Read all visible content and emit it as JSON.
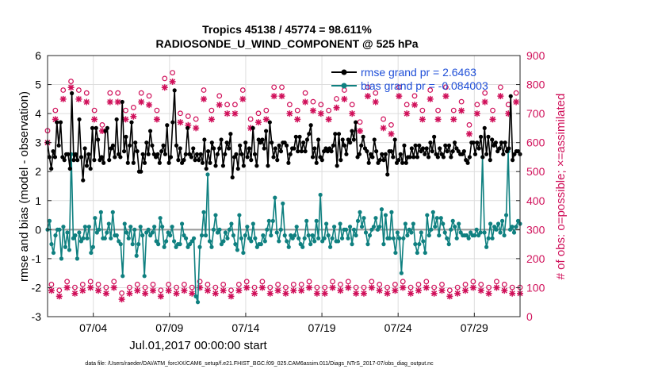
{
  "chart_data": {
    "type": "line",
    "title_line1": "Tropics 45138 / 45774 = 98.611%",
    "title_line2": "RADIOSONDE_U_WIND_COMPONENT @ 525 hPa",
    "xlabel": "Jul.01,2017 00:00:00 start",
    "ylabel_left": "rmse and bias (model - observation)",
    "ylabel_right": "# of obs: o=possible; ×=assimilated",
    "footer": "data file: /Users/raeder/DAI/ATM_forcXX/CAM6_setup/f.e21.FHIST_BGC.f09_025.CAM6assim.011/Diags_NTrS_2017-07/obs_diag_output.nc",
    "x_ticks": [
      "07/04",
      "07/09",
      "07/14",
      "07/19",
      "07/24",
      "07/29"
    ],
    "x_tick_days": [
      4,
      9,
      14,
      19,
      24,
      29
    ],
    "x_range": [
      1.0,
      32.0
    ],
    "ylim_left": [
      -3,
      6
    ],
    "y_ticks_left": [
      "6",
      "5",
      "4",
      "3",
      "2",
      "1",
      "0",
      "-1",
      "-2",
      "-3"
    ],
    "ylim_right": [
      0,
      900
    ],
    "y_ticks_right": [
      "900",
      "800",
      "700",
      "600",
      "500",
      "400",
      "300",
      "200",
      "100",
      "0"
    ],
    "grid": true,
    "legend_position": "top-right",
    "colors": {
      "rmse": "#000000",
      "bias": "#0f8080",
      "obs": "#d0105a",
      "zero_line": "#999999",
      "grid": "#dddddd"
    },
    "series": [
      {
        "name": "rmse grand pr = 2.6463",
        "axis": "left",
        "values": [
          3.0,
          2.5,
          2.1,
          2.7,
          2.5,
          3.7,
          2.9,
          3.7,
          2.5,
          2.4,
          2.6,
          2.6,
          2.1,
          4.7,
          2.4,
          2.6,
          2.4,
          3.8,
          2.5,
          1.7,
          2.8,
          2.2,
          2.6,
          2.1,
          3.5,
          2.4,
          3.5,
          3.1,
          2.4,
          2.5,
          2.3,
          3.4,
          3.5,
          2.4,
          2.8,
          2.9,
          2.5,
          3.8,
          2.6,
          2.5,
          4.4,
          2.7,
          3.2,
          2.3,
          2.9,
          3.7,
          2.3,
          3.0,
          2.7,
          2.0,
          2.0,
          2.6,
          2.3,
          3.0,
          2.6,
          3.4,
          2.9,
          2.6,
          2.5,
          2.6,
          2.3,
          2.7,
          2.9,
          2.6,
          3.6,
          2.3,
          2.5,
          3.7,
          4.8,
          2.9,
          2.4,
          2.8,
          2.3,
          2.4,
          2.6,
          3.5,
          2.6,
          2.5,
          2.8,
          2.4,
          2.6,
          2.4,
          2.6,
          2.3,
          3.1,
          2.1,
          2.7,
          2.3,
          3.0,
          2.8,
          2.2,
          2.6,
          2.8,
          3.1,
          2.2,
          2.6,
          3.0,
          2.8,
          3.3,
          1.8,
          2.5,
          2.6,
          2.1,
          2.9,
          2.6,
          2.2,
          3.0,
          2.5,
          2.8,
          2.4,
          3.5,
          2.6,
          2.2,
          3.1,
          3.0,
          3.1,
          2.8,
          3.4,
          2.2,
          3.7,
          3.0,
          2.5,
          2.8,
          2.4,
          2.9,
          2.7,
          3.0,
          3.0,
          2.9,
          2.3,
          2.6,
          2.8,
          2.8,
          3.2,
          2.7,
          3.2,
          2.7,
          3.0,
          2.7,
          3.1,
          3.3,
          3.6,
          2.5,
          2.8,
          2.3,
          3.1,
          2.5,
          2.4,
          2.7,
          2.8,
          2.7,
          2.8,
          2.7,
          2.9,
          3.3,
          2.2,
          3.3,
          2.4,
          3.1,
          2.9,
          2.6,
          3.1,
          3.0,
          3.4,
          3.1,
          3.7,
          2.5,
          2.6,
          2.9,
          3.2,
          2.8,
          2.7,
          2.3,
          2.6,
          2.5,
          3.1,
          2.7,
          2.3,
          2.4,
          2.6,
          2.4,
          2.6,
          1.9,
          2.7,
          2.7,
          2.5,
          3.1,
          2.3,
          2.4,
          2.6,
          2.3,
          2.9,
          2.3,
          2.5,
          2.5,
          2.8,
          2.5,
          2.9,
          2.5,
          2.9,
          2.7,
          2.8,
          2.6,
          2.8,
          2.5,
          3.0,
          2.7,
          3.2,
          2.6,
          2.5,
          2.8,
          2.6,
          2.5,
          2.9,
          2.7,
          2.9,
          2.5,
          2.7,
          3.0,
          2.8,
          2.7,
          2.6,
          2.6,
          2.7,
          2.4,
          2.3,
          2.5,
          3.0,
          3.0,
          2.6,
          3.0,
          2.8,
          3.2,
          2.5,
          3.5,
          2.6,
          3.2,
          2.4,
          3.1,
          2.9,
          3.0,
          2.7,
          2.8,
          3.0,
          2.6,
          3.0,
          2.7,
          2.8,
          4.6,
          2.4,
          2.6,
          2.7,
          2.7,
          2.6
        ],
        "note": "approximate, 4 values per day (6-hourly)"
      },
      {
        "name": "bias grand pr = -0.084003",
        "axis": "left",
        "values": [
          0.0,
          0.3,
          -0.5,
          -0.8,
          -0.2,
          0.0,
          0.0,
          -1.0,
          0.1,
          -0.6,
          -0.1,
          -0.7,
          2.6,
          -0.3,
          -0.2,
          -1.0,
          -0.1,
          -0.4,
          -0.3,
          0.1,
          -0.3,
          0.1,
          -0.8,
          -0.6,
          0.4,
          -0.1,
          0.0,
          0.6,
          -0.3,
          -0.3,
          -0.1,
          0.2,
          -0.3,
          0.6,
          -0.2,
          -0.2,
          -0.4,
          -0.5,
          -1.6,
          0.2,
          -0.1,
          -0.3,
          0.1,
          -0.5,
          0.0,
          -0.9,
          -0.5,
          0.1,
          -0.2,
          -1.6,
          -0.1,
          0.0,
          -0.2,
          -0.1,
          0.1,
          -0.4,
          -0.5,
          0.4,
          0.1,
          -0.6,
          -0.4,
          -0.1,
          -0.2,
          0.1,
          -0.4,
          -0.6,
          -0.5,
          -0.5,
          0.2,
          -0.2,
          -0.3,
          -0.6,
          -0.5,
          -0.4,
          -0.3,
          -2.3,
          -2.5,
          -0.6,
          -0.2,
          0.6,
          -0.2,
          1.9,
          -0.4,
          -0.6,
          0.0,
          0.5,
          -0.1,
          0.0,
          -0.5,
          -0.4,
          -0.1,
          -0.3,
          0.0,
          0.2,
          -0.2,
          -0.5,
          -0.7,
          0.5,
          -0.3,
          -0.8,
          -0.2,
          0.1,
          -0.3,
          -0.4,
          0.2,
          -0.3,
          -0.6,
          -0.5,
          -0.5,
          -0.2,
          -0.4,
          0.0,
          0.3,
          -0.2,
          0.3,
          1.1,
          -0.1,
          -0.4,
          0.0,
          0.9,
          -0.2,
          -0.4,
          -0.6,
          -0.2,
          -0.3,
          -0.2,
          0.1,
          -0.3,
          -0.5,
          -0.6,
          -0.3,
          0.3,
          -0.2,
          -0.5,
          -0.2,
          -0.4,
          0.3,
          -0.3,
          1.2,
          -0.4,
          -0.3,
          0.2,
          -0.2,
          -0.6,
          -0.3,
          0.1,
          -0.4,
          -0.4,
          0.2,
          -0.3,
          0.0,
          0.0,
          -0.3,
          0.1,
          -0.5,
          0.0,
          -0.2,
          0.3,
          0.6,
          0.1,
          0.4,
          -0.1,
          -0.5,
          -0.2,
          0.0,
          0.1,
          0.4,
          0.0,
          0.1,
          0.7,
          -0.5,
          0.5,
          -0.3,
          -0.3,
          0.6,
          -0.3,
          -0.8,
          -0.1,
          -0.3,
          -1.5,
          -0.3,
          0.2,
          -0.2,
          0.0,
          -0.1,
          0.2,
          -0.5,
          -0.8,
          -0.5,
          -0.1,
          -0.4,
          -0.8,
          0.5,
          -0.2,
          0.0,
          0.6,
          0.1,
          0.4,
          -0.2,
          0.4,
          0.2,
          -0.1,
          -0.3,
          -0.5,
          0.0,
          0.3,
          0.1,
          -0.3,
          0.2,
          -0.1,
          -0.2,
          -0.2,
          -0.2,
          -0.3,
          -0.1,
          -0.2,
          -0.2,
          0.0,
          -0.2,
          -0.1,
          2.5,
          -0.1,
          -0.6,
          -0.3,
          0.2,
          -0.3,
          0.1,
          0.0,
          0.2,
          -0.1,
          0.3,
          -0.2,
          0.5,
          2.7,
          0.0,
          0.1,
          -0.1,
          0.1,
          0.3,
          0.2
        ],
        "note": "approximate, 4 values per day (6-hourly)"
      },
      {
        "name": "possible obs",
        "axis": "right",
        "marker": "o",
        "values": [
          630,
          100,
          700,
          80,
          770,
          110,
          800,
          90,
          770,
          100,
          760,
          110,
          700,
          100,
          650,
          90,
          760,
          110,
          760,
          70,
          700,
          90,
          710,
          100,
          760,
          90,
          750,
          100,
          700,
          80,
          810,
          100,
          830,
          90,
          690,
          100,
          680,
          90,
          670,
          110,
          770,
          100,
          700,
          90,
          750,
          100,
          720,
          80,
          720,
          100,
          770,
          110,
          670,
          90,
          690,
          110,
          700,
          90,
          780,
          100,
          780,
          90,
          720,
          100,
          700,
          100,
          760,
          110,
          730,
          90,
          720,
          90,
          700,
          110,
          740,
          100,
          770,
          110,
          720,
          90,
          660,
          90,
          780,
          110,
          760,
          100,
          670,
          90,
          650,
          100,
          780,
          110,
          720,
          90,
          750,
          100,
          700,
          110,
          770,
          90,
          700,
          100,
          780,
          80,
          700,
          90,
          730,
          100,
          650,
          110,
          720,
          100,
          760,
          90,
          700,
          110,
          780,
          100,
          720,
          90,
          760,
          90
        ],
        "note": "approximate, 4 values per day; alternating 00Z/12Z high and 06Z/18Z low counts"
      },
      {
        "name": "assimilated obs",
        "axis": "right",
        "marker": "x",
        "values": [
          600,
          90,
          680,
          70,
          750,
          100,
          790,
          80,
          750,
          90,
          740,
          100,
          680,
          90,
          640,
          80,
          740,
          100,
          740,
          60,
          680,
          80,
          690,
          90,
          740,
          80,
          730,
          90,
          680,
          70,
          790,
          90,
          810,
          80,
          670,
          90,
          660,
          80,
          650,
          100,
          750,
          90,
          680,
          80,
          730,
          90,
          700,
          70,
          700,
          90,
          750,
          100,
          650,
          80,
          670,
          100,
          680,
          80,
          760,
          90,
          760,
          80,
          700,
          90,
          680,
          90,
          740,
          100,
          710,
          80,
          700,
          80,
          680,
          100,
          720,
          90,
          750,
          100,
          700,
          80,
          640,
          80,
          760,
          100,
          740,
          90,
          650,
          80,
          630,
          90,
          760,
          100,
          700,
          80,
          730,
          90,
          680,
          100,
          750,
          80,
          680,
          90,
          760,
          70,
          680,
          80,
          710,
          90,
          630,
          100,
          700,
          90,
          740,
          80,
          680,
          100,
          760,
          90,
          700,
          80,
          740,
          80
        ],
        "note": "approximate, 4 values per day"
      }
    ]
  }
}
